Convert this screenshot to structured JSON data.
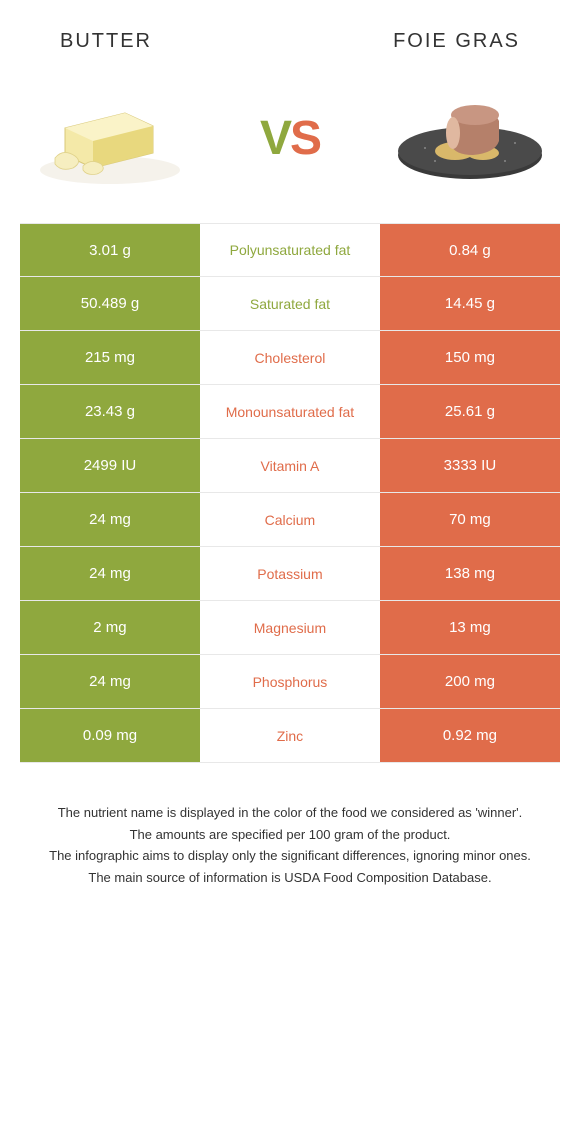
{
  "header": {
    "left_title": "BUTTER",
    "right_title": "FOIE GRAS"
  },
  "vs": {
    "v": "V",
    "s": "S"
  },
  "colors": {
    "left": "#8fa83e",
    "right": "#e06c4a",
    "border": "#e8e8e8",
    "text": "#333333"
  },
  "table": {
    "rows": [
      {
        "left": "3.01 g",
        "label": "Polyunsaturated fat",
        "right": "0.84 g",
        "winner": "left"
      },
      {
        "left": "50.489 g",
        "label": "Saturated fat",
        "right": "14.45 g",
        "winner": "left"
      },
      {
        "left": "215 mg",
        "label": "Cholesterol",
        "right": "150 mg",
        "winner": "right"
      },
      {
        "left": "23.43 g",
        "label": "Monounsaturated fat",
        "right": "25.61 g",
        "winner": "right"
      },
      {
        "left": "2499 IU",
        "label": "Vitamin A",
        "right": "3333 IU",
        "winner": "right"
      },
      {
        "left": "24 mg",
        "label": "Calcium",
        "right": "70 mg",
        "winner": "right"
      },
      {
        "left": "24 mg",
        "label": "Potassium",
        "right": "138 mg",
        "winner": "right"
      },
      {
        "left": "2 mg",
        "label": "Magnesium",
        "right": "13 mg",
        "winner": "right"
      },
      {
        "left": "24 mg",
        "label": "Phosphorus",
        "right": "200 mg",
        "winner": "right"
      },
      {
        "left": "0.09 mg",
        "label": "Zinc",
        "right": "0.92 mg",
        "winner": "right"
      }
    ]
  },
  "footnotes": [
    "The nutrient name is displayed in the color of the food we considered as 'winner'.",
    "The amounts are specified per 100 gram of the product.",
    "The infographic aims to display only the significant differences, ignoring minor ones.",
    "The main source of information is USDA Food Composition Database."
  ]
}
